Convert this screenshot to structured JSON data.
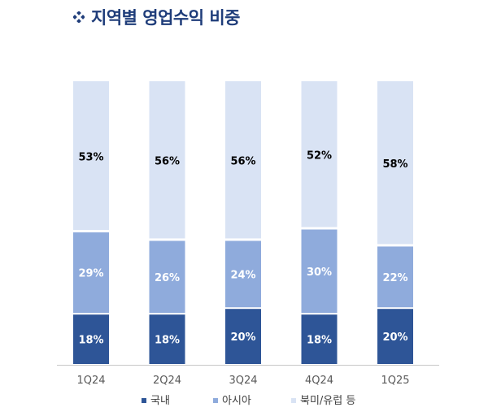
{
  "title": "지역별 영업수익 비중",
  "colors": {
    "title": "#1f3d7a",
    "domestic": "#2e5597",
    "asia": "#8fabdc",
    "na_eu": "#d9e3f4",
    "axis": "#c8c8c8"
  },
  "chart_data": {
    "type": "bar",
    "stacked": true,
    "categories": [
      "1Q24",
      "2Q24",
      "3Q24",
      "4Q24",
      "1Q25"
    ],
    "series": [
      {
        "name": "국내",
        "values": [
          18,
          18,
          20,
          18,
          20
        ],
        "labels": [
          "18%",
          "18%",
          "20%",
          "18%",
          "20%"
        ]
      },
      {
        "name": "아시아",
        "values": [
          29,
          26,
          24,
          30,
          22
        ],
        "labels": [
          "29%",
          "26%",
          "24%",
          "30%",
          "22%"
        ]
      },
      {
        "name": "북미/유럽 등",
        "values": [
          53,
          56,
          56,
          52,
          58
        ],
        "labels": [
          "53%",
          "56%",
          "56%",
          "52%",
          "58%"
        ]
      }
    ],
    "ylim": [
      0,
      100
    ],
    "unit": "%",
    "legend_position": "bottom",
    "grid": false
  }
}
